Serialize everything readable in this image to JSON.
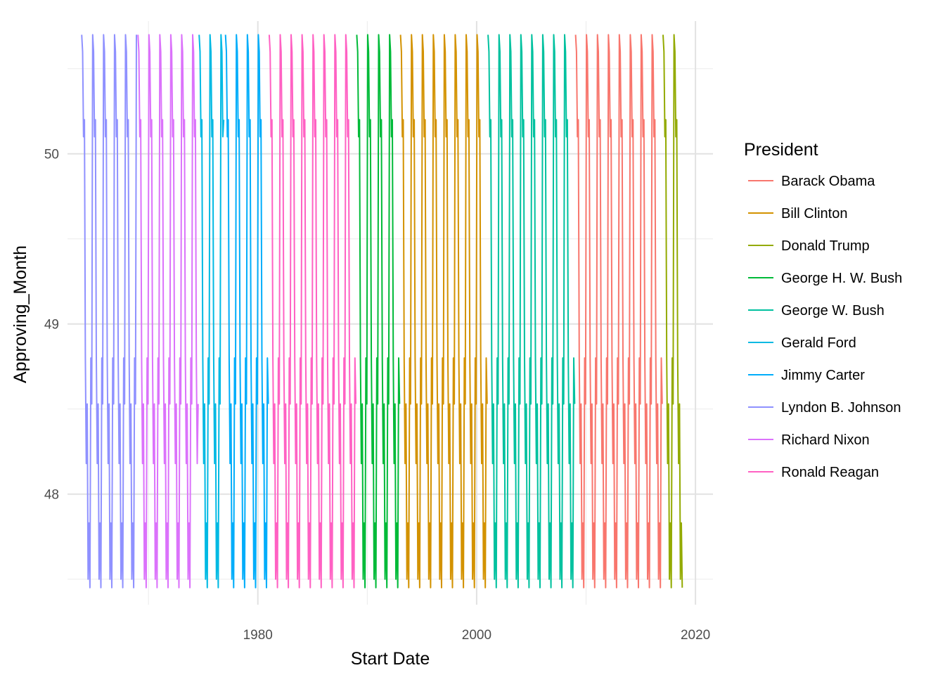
{
  "chart_data": {
    "type": "line",
    "xlabel": "Start Date",
    "ylabel": "Approving_Month",
    "x_ticks": [
      1980,
      2000,
      2020
    ],
    "y_ticks": [
      48,
      49,
      50
    ],
    "x_minor_ticks": [
      1970,
      1990,
      2010
    ],
    "y_minor_ticks": [
      47.5,
      48.5,
      49.5,
      50.5
    ],
    "xlim": [
      1962.6,
      2021.6
    ],
    "ylim": [
      47.35,
      50.78
    ],
    "grid": true,
    "legend_title": "President",
    "legend_position": "right",
    "monthly_cycle": [
      50.7,
      50.6,
      50.1,
      50.2,
      48.8,
      48.18,
      48.53,
      47.5,
      47.83,
      47.45,
      48.8,
      48.53
    ],
    "series": [
      {
        "name": "Barack Obama",
        "color": "#F8766D",
        "start": 2009.04,
        "end": 2016.96
      },
      {
        "name": "Bill Clinton",
        "color": "#D39200",
        "start": 1993.04,
        "end": 2000.96
      },
      {
        "name": "Donald Trump",
        "color": "#93AA00",
        "start": 2017.04,
        "end": 2018.8
      },
      {
        "name": "George H. W. Bush",
        "color": "#00BA38",
        "start": 1989.04,
        "end": 1992.96
      },
      {
        "name": "George W. Bush",
        "color": "#00C19F",
        "start": 2001.04,
        "end": 2008.96
      },
      {
        "name": "Gerald Ford",
        "color": "#00B9E3",
        "start": 1974.63,
        "end": 1976.96
      },
      {
        "name": "Jimmy Carter",
        "color": "#00ADFA",
        "start": 1977.04,
        "end": 1980.96
      },
      {
        "name": "Lyndon B. Johnson",
        "color": "#8F91FF",
        "start": 1963.9,
        "end": 1968.96
      },
      {
        "name": "Richard Nixon",
        "color": "#DB72FB",
        "start": 1969.04,
        "end": 1974.6
      },
      {
        "name": "Ronald Reagan",
        "color": "#FF61C3",
        "start": 1981.04,
        "end": 1988.96
      }
    ]
  }
}
